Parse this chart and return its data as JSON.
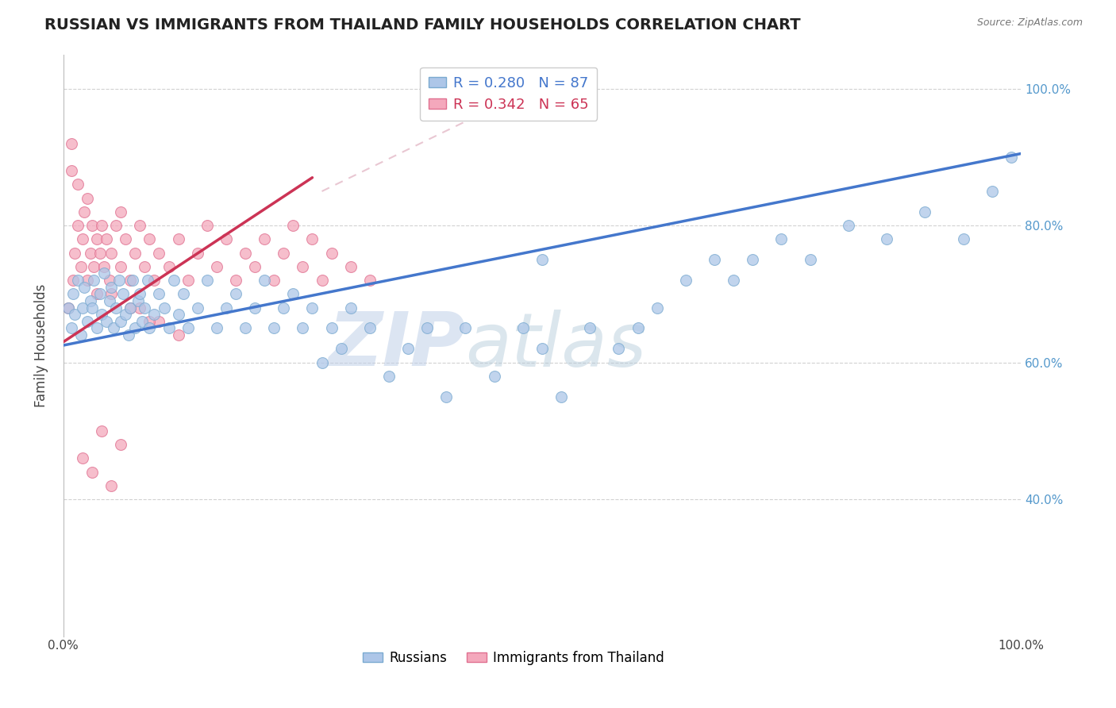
{
  "title": "RUSSIAN VS IMMIGRANTS FROM THAILAND FAMILY HOUSEHOLDS CORRELATION CHART",
  "source_text": "Source: ZipAtlas.com",
  "ylabel": "Family Households",
  "legend_label_russians": "Russians",
  "legend_label_thailand": "Immigrants from Thailand",
  "watermark_zip": "ZIP",
  "watermark_atlas": "atlas",
  "xlim": [
    0,
    1
  ],
  "ylim": [
    0.2,
    1.05
  ],
  "right_ytick_labels": [
    "40.0%",
    "60.0%",
    "80.0%",
    "100.0%"
  ],
  "right_ytick_positions": [
    0.4,
    0.6,
    0.8,
    1.0
  ],
  "grid_color": "#cccccc",
  "bg_color": "#ffffff",
  "blue_dot_color": "#adc6e8",
  "blue_dot_edge": "#7aaad0",
  "pink_dot_color": "#f4a8bc",
  "pink_dot_edge": "#e07090",
  "blue_line_color": "#4477cc",
  "pink_line_color": "#cc3355",
  "ref_line_color": "#ddaabb",
  "title_fontsize": 14,
  "axis_label_fontsize": 12,
  "tick_fontsize": 11,
  "dot_size": 100,
  "russians_x": [
    0.005,
    0.008,
    0.01,
    0.012,
    0.015,
    0.018,
    0.02,
    0.022,
    0.025,
    0.028,
    0.03,
    0.032,
    0.035,
    0.038,
    0.04,
    0.042,
    0.045,
    0.048,
    0.05,
    0.052,
    0.055,
    0.058,
    0.06,
    0.062,
    0.065,
    0.068,
    0.07,
    0.072,
    0.075,
    0.078,
    0.08,
    0.082,
    0.085,
    0.088,
    0.09,
    0.095,
    0.1,
    0.105,
    0.11,
    0.115,
    0.12,
    0.125,
    0.13,
    0.14,
    0.15,
    0.16,
    0.17,
    0.18,
    0.19,
    0.2,
    0.21,
    0.22,
    0.23,
    0.24,
    0.25,
    0.26,
    0.27,
    0.28,
    0.29,
    0.3,
    0.32,
    0.34,
    0.36,
    0.38,
    0.4,
    0.42,
    0.45,
    0.48,
    0.5,
    0.52,
    0.55,
    0.58,
    0.6,
    0.62,
    0.65,
    0.68,
    0.7,
    0.72,
    0.75,
    0.78,
    0.82,
    0.86,
    0.9,
    0.94,
    0.97,
    0.99,
    0.5
  ],
  "russians_y": [
    0.68,
    0.65,
    0.7,
    0.67,
    0.72,
    0.64,
    0.68,
    0.71,
    0.66,
    0.69,
    0.68,
    0.72,
    0.65,
    0.7,
    0.67,
    0.73,
    0.66,
    0.69,
    0.71,
    0.65,
    0.68,
    0.72,
    0.66,
    0.7,
    0.67,
    0.64,
    0.68,
    0.72,
    0.65,
    0.69,
    0.7,
    0.66,
    0.68,
    0.72,
    0.65,
    0.67,
    0.7,
    0.68,
    0.65,
    0.72,
    0.67,
    0.7,
    0.65,
    0.68,
    0.72,
    0.65,
    0.68,
    0.7,
    0.65,
    0.68,
    0.72,
    0.65,
    0.68,
    0.7,
    0.65,
    0.68,
    0.6,
    0.65,
    0.62,
    0.68,
    0.65,
    0.58,
    0.62,
    0.65,
    0.55,
    0.65,
    0.58,
    0.65,
    0.62,
    0.55,
    0.65,
    0.62,
    0.65,
    0.68,
    0.72,
    0.75,
    0.72,
    0.75,
    0.78,
    0.75,
    0.8,
    0.78,
    0.82,
    0.78,
    0.85,
    0.9,
    0.75
  ],
  "thailand_x": [
    0.005,
    0.008,
    0.01,
    0.012,
    0.015,
    0.018,
    0.02,
    0.022,
    0.025,
    0.028,
    0.03,
    0.032,
    0.035,
    0.038,
    0.04,
    0.042,
    0.045,
    0.048,
    0.05,
    0.055,
    0.06,
    0.065,
    0.07,
    0.075,
    0.08,
    0.085,
    0.09,
    0.095,
    0.1,
    0.11,
    0.12,
    0.13,
    0.14,
    0.15,
    0.16,
    0.17,
    0.18,
    0.19,
    0.2,
    0.21,
    0.22,
    0.23,
    0.24,
    0.25,
    0.26,
    0.27,
    0.28,
    0.3,
    0.32,
    0.008,
    0.015,
    0.025,
    0.035,
    0.06,
    0.08,
    0.1,
    0.12,
    0.05,
    0.07,
    0.09,
    0.04,
    0.06,
    0.02,
    0.03,
    0.05
  ],
  "thailand_y": [
    0.68,
    0.88,
    0.72,
    0.76,
    0.8,
    0.74,
    0.78,
    0.82,
    0.72,
    0.76,
    0.8,
    0.74,
    0.78,
    0.76,
    0.8,
    0.74,
    0.78,
    0.72,
    0.76,
    0.8,
    0.74,
    0.78,
    0.72,
    0.76,
    0.8,
    0.74,
    0.78,
    0.72,
    0.76,
    0.74,
    0.78,
    0.72,
    0.76,
    0.8,
    0.74,
    0.78,
    0.72,
    0.76,
    0.74,
    0.78,
    0.72,
    0.76,
    0.8,
    0.74,
    0.78,
    0.72,
    0.76,
    0.74,
    0.72,
    0.92,
    0.86,
    0.84,
    0.7,
    0.82,
    0.68,
    0.66,
    0.64,
    0.7,
    0.68,
    0.66,
    0.5,
    0.48,
    0.46,
    0.44,
    0.42
  ],
  "blue_line_x0": 0.0,
  "blue_line_y0": 0.625,
  "blue_line_x1": 1.0,
  "blue_line_y1": 0.905,
  "pink_line_x0": 0.0,
  "pink_line_y0": 0.63,
  "pink_line_x1": 0.26,
  "pink_line_y1": 0.87,
  "ref_line_x0": 0.27,
  "ref_line_y0": 0.85,
  "ref_line_x1": 0.52,
  "ref_line_y1": 1.02
}
